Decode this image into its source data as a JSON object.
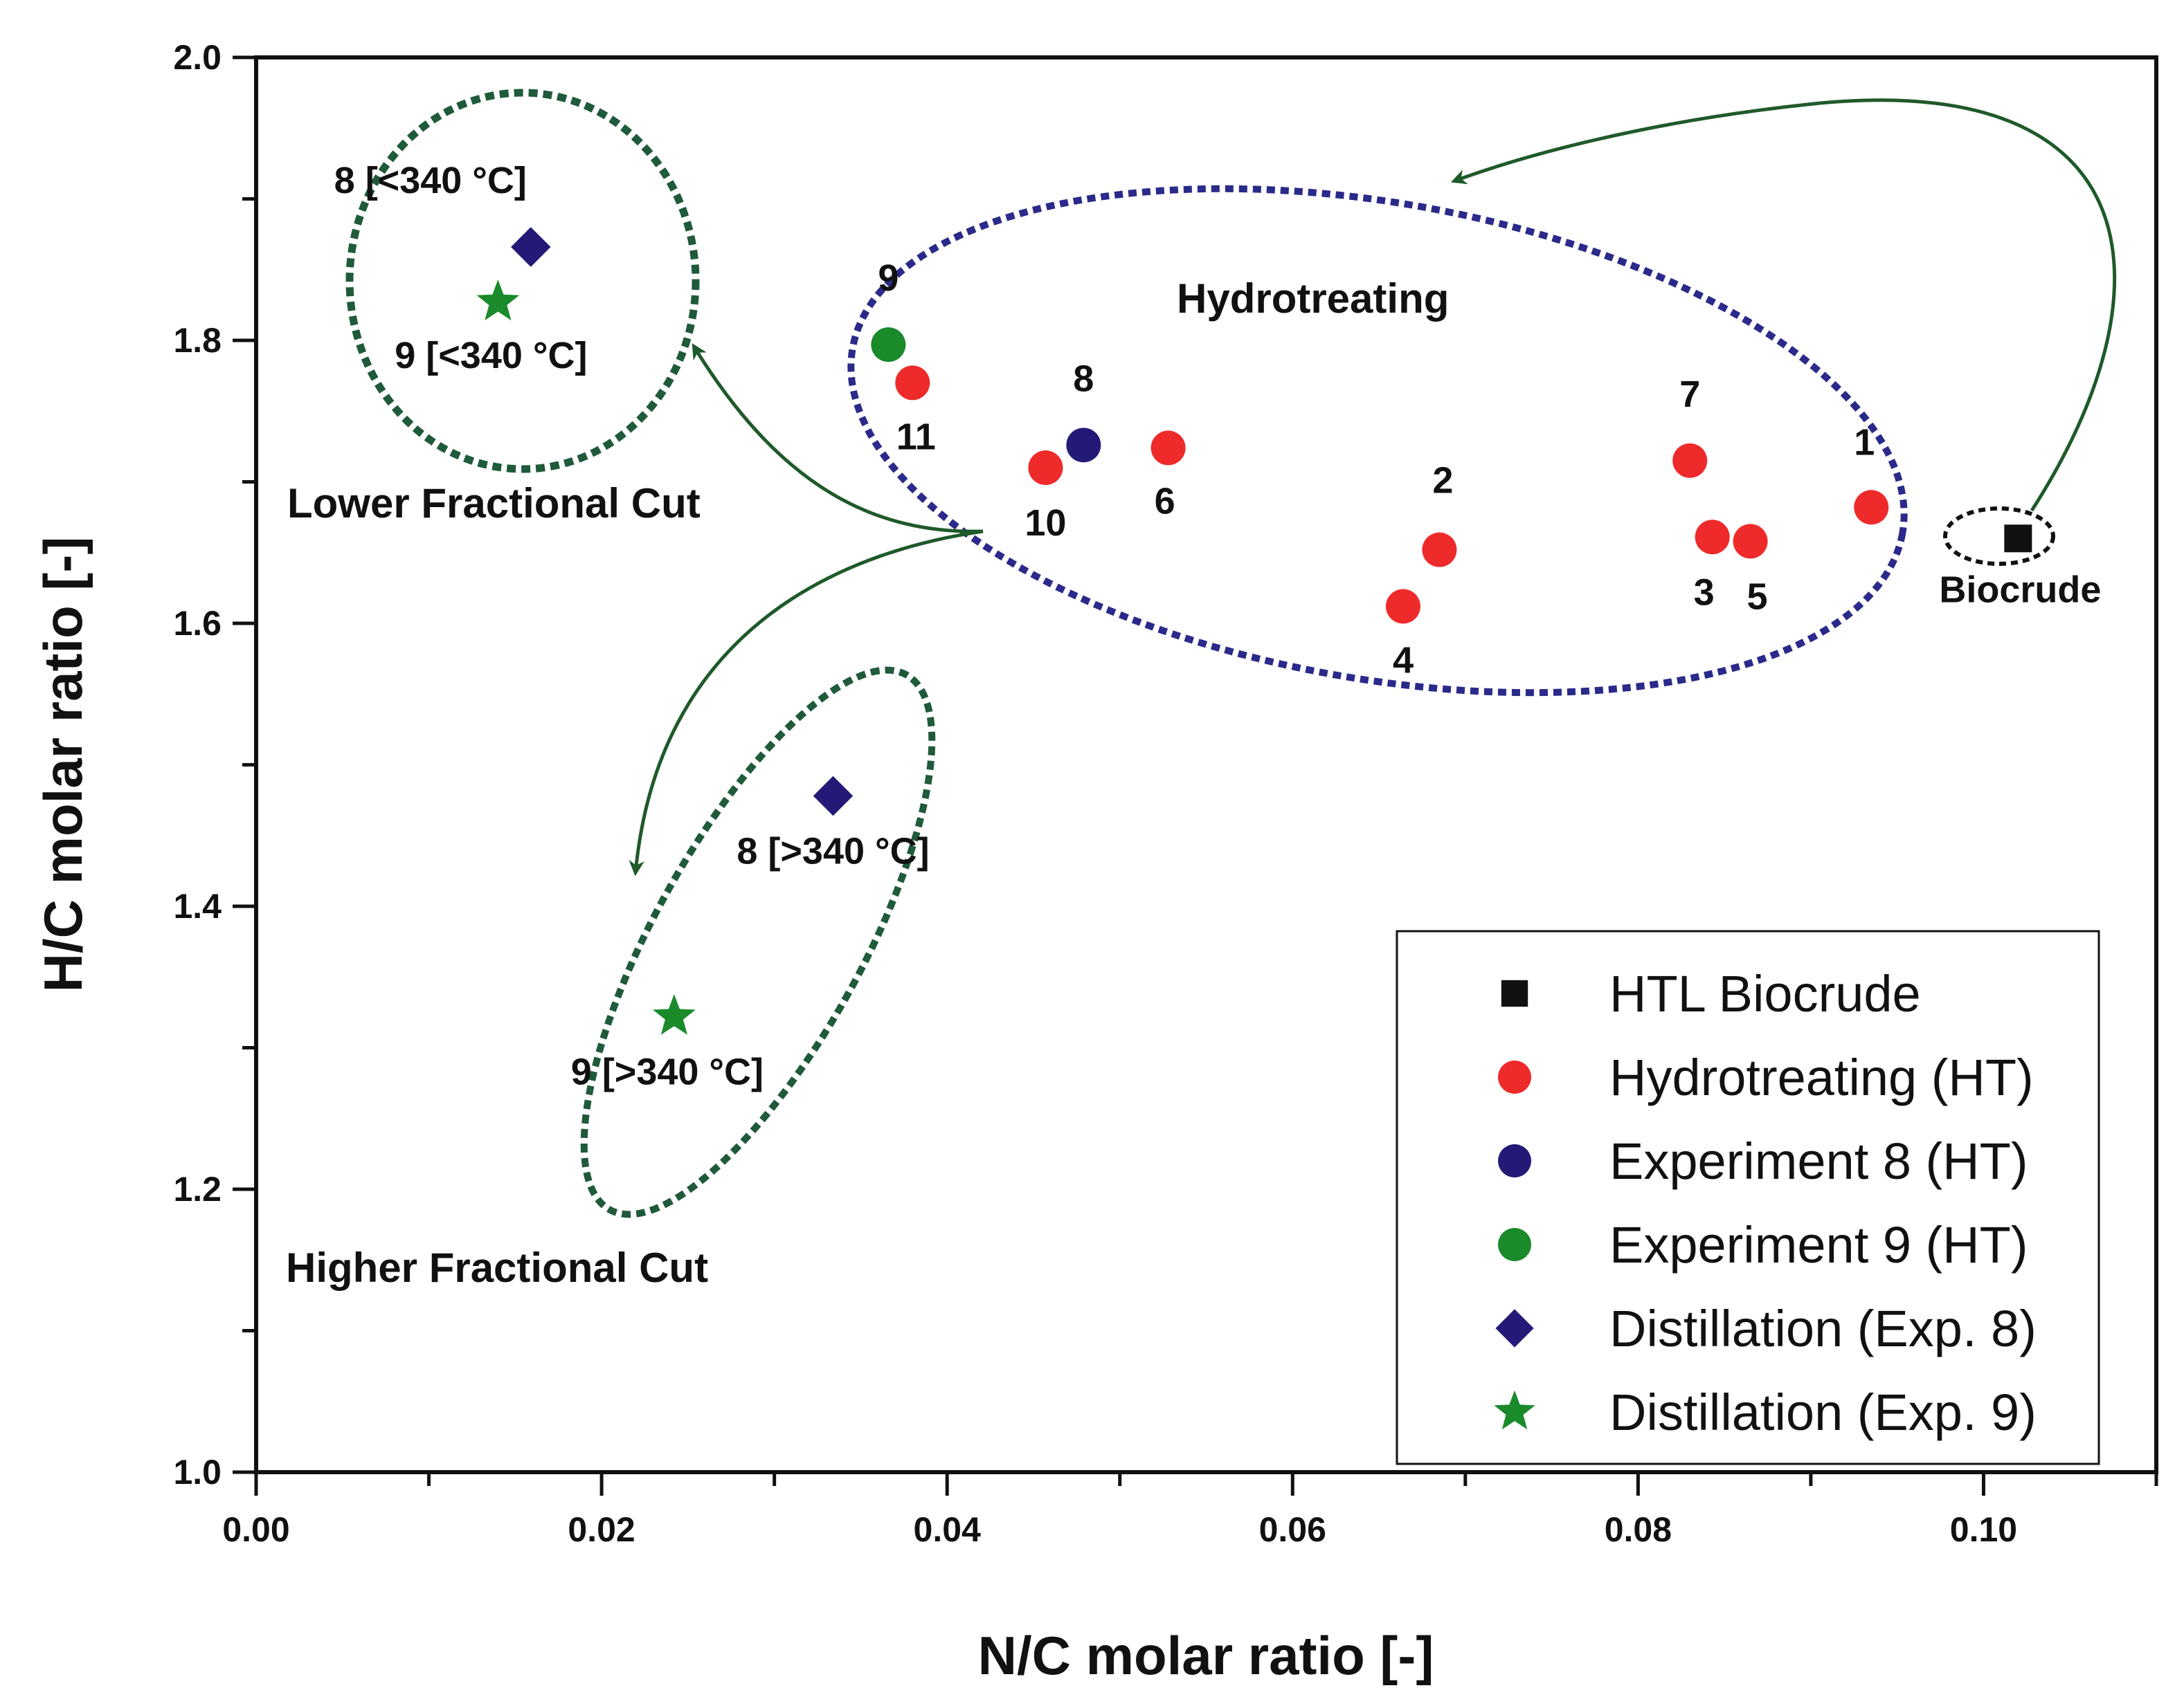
{
  "chart_data": {
    "type": "scatter",
    "title": "",
    "xlabel": "N/C molar ratio [-]",
    "ylabel": "H/C molar ratio [-]",
    "xlim": [
      0.0,
      0.11
    ],
    "ylim": [
      1.0,
      2.0
    ],
    "x_ticks": [
      "0.00",
      "0.02",
      "0.04",
      "0.06",
      "0.08",
      "0.10"
    ],
    "y_ticks": [
      "1.0",
      "1.2",
      "1.4",
      "1.6",
      "1.8",
      "2.0"
    ],
    "grid": false,
    "legend_position": "bottom-right",
    "colors": {
      "biocrude": "#111111",
      "ht": "#ee2a2a",
      "exp8": "#231a78",
      "exp9": "#1a8a2a",
      "hydro_ellipse": "#2b2a8a",
      "cut_ellipse": "#1f5a3a",
      "arrow": "#1f5a2a"
    },
    "series": [
      {
        "name": "HTL Biocrude",
        "marker": "square",
        "color": "#111111",
        "points": [
          {
            "x": 0.102,
            "y": 1.66,
            "label": "Biocrude"
          }
        ]
      },
      {
        "name": "Hydrotreating (HT)",
        "marker": "circle",
        "color": "#ee2a2a",
        "points": [
          {
            "x": 0.0935,
            "y": 1.682,
            "label": "1"
          },
          {
            "x": 0.0685,
            "y": 1.652,
            "label": "2"
          },
          {
            "x": 0.0843,
            "y": 1.661,
            "label": "3"
          },
          {
            "x": 0.0664,
            "y": 1.612,
            "label": "4"
          },
          {
            "x": 0.0865,
            "y": 1.658,
            "label": "5"
          },
          {
            "x": 0.0528,
            "y": 1.724,
            "label": "6"
          },
          {
            "x": 0.083,
            "y": 1.715,
            "label": "7"
          },
          {
            "x": 0.0457,
            "y": 1.71,
            "label": "10"
          },
          {
            "x": 0.038,
            "y": 1.77,
            "label": "11"
          }
        ]
      },
      {
        "name": "Experiment 8 (HT)",
        "marker": "circle",
        "color": "#231a78",
        "points": [
          {
            "x": 0.0479,
            "y": 1.726,
            "label": "8"
          }
        ]
      },
      {
        "name": "Experiment 9 (HT)",
        "marker": "circle",
        "color": "#1a8a2a",
        "points": [
          {
            "x": 0.0366,
            "y": 1.797,
            "label": "9"
          }
        ]
      },
      {
        "name": "Distillation (Exp. 8)",
        "marker": "diamond",
        "color": "#231a78",
        "points": [
          {
            "x": 0.0159,
            "y": 1.866,
            "label": "8 [<340 °C]"
          },
          {
            "x": 0.0334,
            "y": 1.478,
            "label": "8 [>340 °C]"
          }
        ]
      },
      {
        "name": "Distillation (Exp. 9)",
        "marker": "star",
        "color": "#1a8a2a",
        "points": [
          {
            "x": 0.014,
            "y": 1.827,
            "label": "9 [<340 °C]"
          },
          {
            "x": 0.0242,
            "y": 1.322,
            "label": "9 [>340 °C]"
          }
        ]
      }
    ],
    "annotations": {
      "hydrotreating": "Hydrotreating",
      "lower_cut": "Lower Fractional Cut",
      "higher_cut": "Higher Fractional Cut"
    }
  }
}
